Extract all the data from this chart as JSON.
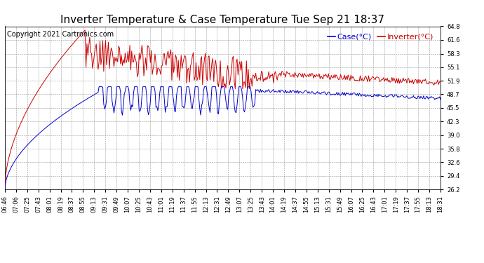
{
  "title": "Inverter Temperature & Case Temperature Tue Sep 21 18:37",
  "copyright": "Copyright 2021 Cartronics.com",
  "legend_case": "Case(°C)",
  "legend_inverter": "Inverter(°C)",
  "case_color": "#0000cc",
  "inverter_color": "#cc0000",
  "background_color": "#ffffff",
  "grid_color": "#999999",
  "ylim": [
    26.2,
    64.8
  ],
  "yticks": [
    26.2,
    29.4,
    32.6,
    35.8,
    39.0,
    42.3,
    45.5,
    48.7,
    51.9,
    55.1,
    58.3,
    61.6,
    64.8
  ],
  "xtick_labels": [
    "06:46",
    "07:06",
    "07:25",
    "07:43",
    "08:01",
    "08:19",
    "08:37",
    "08:55",
    "09:13",
    "09:31",
    "09:49",
    "10:07",
    "10:25",
    "10:43",
    "11:01",
    "11:19",
    "11:37",
    "11:55",
    "12:13",
    "12:31",
    "12:49",
    "13:07",
    "13:25",
    "13:43",
    "14:01",
    "14:19",
    "14:37",
    "14:55",
    "15:13",
    "15:31",
    "15:49",
    "16:07",
    "16:25",
    "16:43",
    "17:01",
    "17:19",
    "17:37",
    "17:55",
    "18:13",
    "18:31"
  ],
  "title_fontsize": 11,
  "tick_fontsize": 6,
  "legend_fontsize": 8,
  "copyright_fontsize": 7,
  "figwidth": 6.9,
  "figheight": 3.75,
  "dpi": 100
}
